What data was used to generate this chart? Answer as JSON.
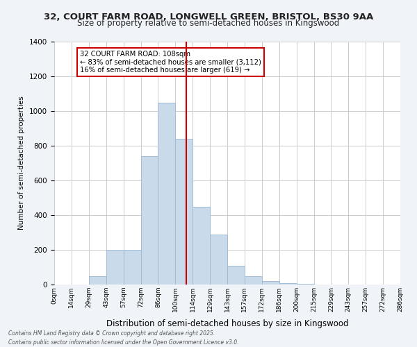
{
  "title_line1": "32, COURT FARM ROAD, LONGWELL GREEN, BRISTOL, BS30 9AA",
  "title_line2": "Size of property relative to semi-detached houses in Kingswood",
  "xlabel": "Distribution of semi-detached houses by size in Kingswood",
  "ylabel": "Number of semi-detached properties",
  "bin_labels": [
    "0sqm",
    "14sqm",
    "29sqm",
    "43sqm",
    "57sqm",
    "72sqm",
    "86sqm",
    "100sqm",
    "114sqm",
    "129sqm",
    "143sqm",
    "157sqm",
    "172sqm",
    "186sqm",
    "200sqm",
    "215sqm",
    "229sqm",
    "243sqm",
    "257sqm",
    "272sqm",
    "286sqm"
  ],
  "bar_heights": [
    2,
    2,
    50,
    200,
    200,
    740,
    1050,
    840,
    450,
    290,
    110,
    50,
    20,
    10,
    5,
    2,
    1,
    0,
    0,
    0
  ],
  "bar_color": "#c9daea",
  "bar_edge_color": "#a0bcd4",
  "vline_x": 7.65,
  "vline_color": "#cc0000",
  "annotation_text": "32 COURT FARM ROAD: 108sqm\n← 83% of semi-detached houses are smaller (3,112)\n16% of semi-detached houses are larger (619) →",
  "annotation_box_color": "#ffffff",
  "annotation_box_edge": "#cc0000",
  "ylim": [
    0,
    1400
  ],
  "yticks": [
    0,
    200,
    400,
    600,
    800,
    1000,
    1200,
    1400
  ],
  "footer_line1": "Contains HM Land Registry data © Crown copyright and database right 2025.",
  "footer_line2": "Contains public sector information licensed under the Open Government Licence v3.0.",
  "bg_color": "#f0f4f8",
  "plot_bg_color": "#ffffff",
  "grid_color": "#cccccc"
}
